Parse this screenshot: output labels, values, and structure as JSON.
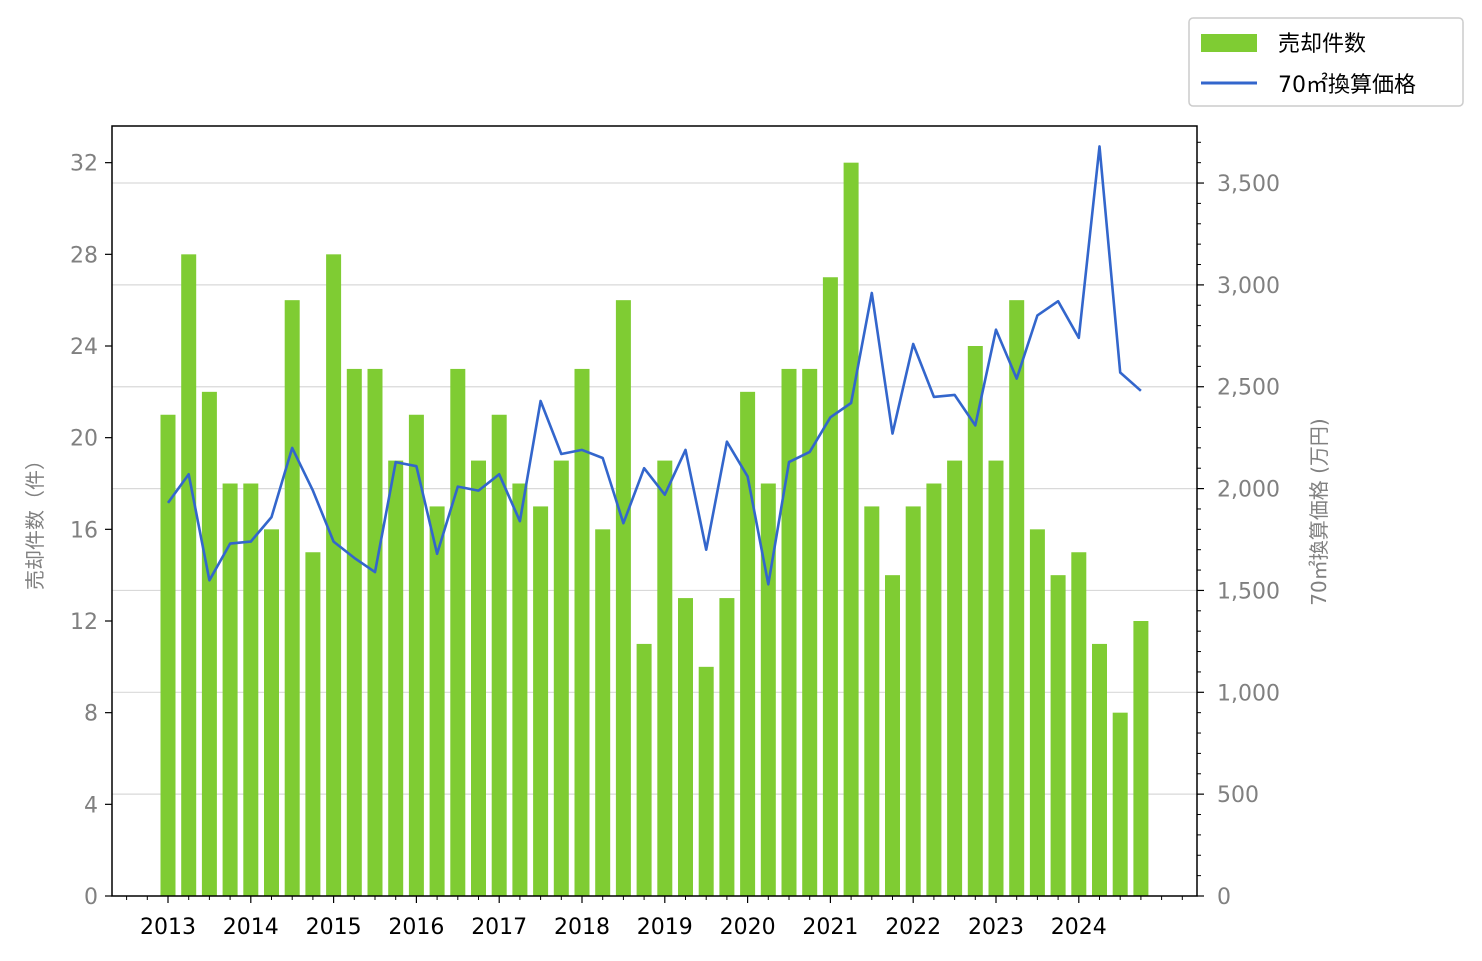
{
  "chart_data": {
    "type": "bar",
    "title": "",
    "x_tick_labels": [
      "2013",
      "2014",
      "2015",
      "2016",
      "2017",
      "2018",
      "2019",
      "2020",
      "2021",
      "2022",
      "2023",
      "2024"
    ],
    "ylabel_left": "売却件数（件）",
    "ylabel_right": "70㎡換算価格 (万円)",
    "ylim_left": [
      0,
      33.6
    ],
    "ylim_right": [
      0,
      3780
    ],
    "yticks_left": [
      "0",
      "4",
      "8",
      "12",
      "16",
      "20",
      "24",
      "28",
      "32"
    ],
    "yticks_right": [
      "0",
      "500",
      "1,000",
      "1,500",
      "2,000",
      "2,500",
      "3,000",
      "3,500"
    ],
    "grid": "horizontal (right axis)",
    "legend_position": "top-right, outside plot",
    "colors": {
      "bars": "#7fcc33",
      "line": "#3366cc"
    },
    "series": [
      {
        "name": "売却件数",
        "type": "bar",
        "axis": "left",
        "values": [
          21,
          28,
          22,
          18,
          18,
          16,
          26,
          15,
          28,
          23,
          23,
          19,
          21,
          17,
          23,
          19,
          21,
          18,
          17,
          19,
          23,
          16,
          26,
          11,
          19,
          13,
          10,
          13,
          22,
          18,
          23,
          23,
          27,
          32,
          17,
          14,
          17,
          18,
          19,
          24,
          19,
          26,
          16,
          14,
          15,
          11,
          8,
          12
        ]
      },
      {
        "name": "70㎡換算価格",
        "type": "line",
        "axis": "right",
        "values": [
          1930,
          2070,
          1550,
          1730,
          1740,
          1860,
          2200,
          1990,
          1740,
          1660,
          1590,
          2130,
          2110,
          1680,
          2010,
          1990,
          2070,
          1840,
          2430,
          2170,
          2190,
          2150,
          1830,
          2100,
          1970,
          2190,
          1700,
          2230,
          2060,
          1530,
          2130,
          2180,
          2350,
          2420,
          2960,
          2270,
          2710,
          2450,
          2460,
          2310,
          2780,
          2540,
          2850,
          2920,
          2740,
          3680,
          2570,
          2480
        ]
      }
    ]
  }
}
